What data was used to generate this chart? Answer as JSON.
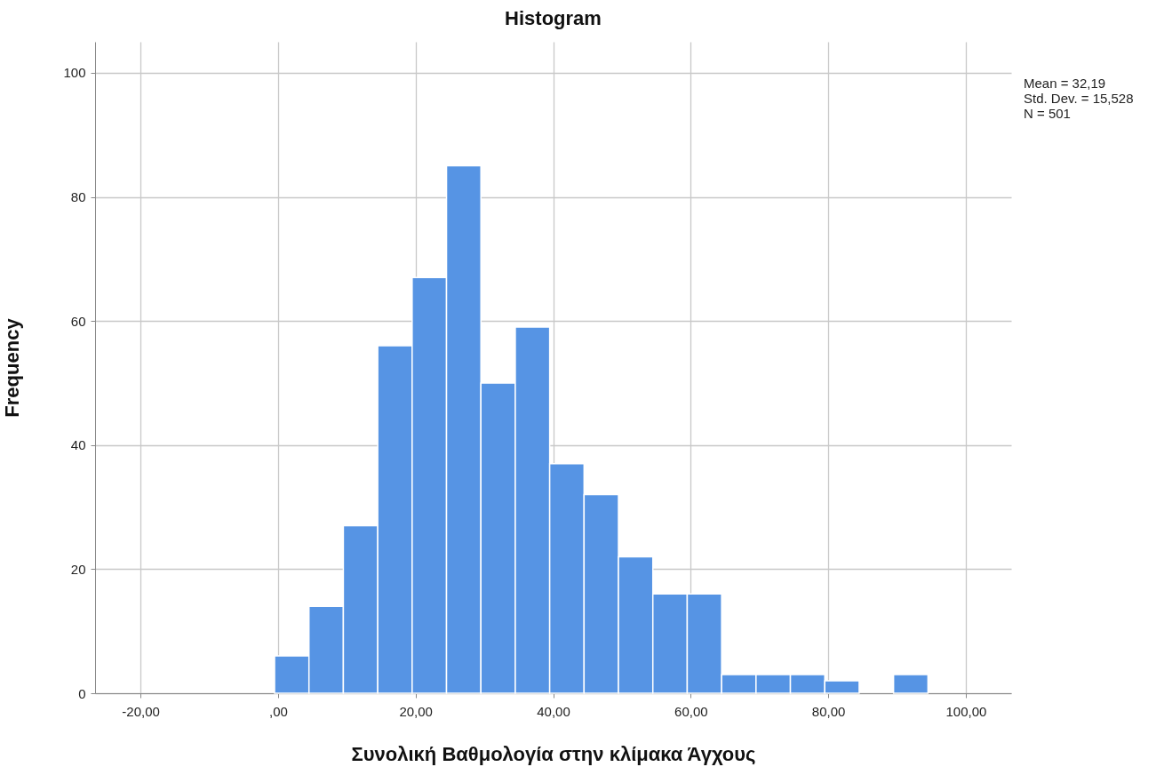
{
  "chart_data": {
    "type": "histogram",
    "title": "Histogram",
    "xlabel": "Συνολική Βαθμολογία στην κλίμακα Άγχους",
    "ylabel": "Frequency",
    "bins": [
      -0.5,
      4.5,
      9.5,
      14.5,
      19.5,
      24.5,
      29.5,
      34.5,
      39.5,
      44.5,
      49.5,
      54.5,
      59.5,
      64.5,
      69.5,
      74.5,
      79.5,
      84.5,
      89.5,
      94.5
    ],
    "values": [
      6,
      14,
      27,
      56,
      67,
      85,
      50,
      59,
      37,
      32,
      22,
      16,
      16,
      3,
      3,
      3,
      2,
      0,
      3
    ],
    "color": "#5694e4",
    "xlim": [
      -26.6,
      106.6
    ],
    "xticks": [
      {
        "value": -20,
        "label": "-20,00"
      },
      {
        "value": 0,
        "label": ",00"
      },
      {
        "value": 20,
        "label": "20,00"
      },
      {
        "value": 40,
        "label": "40,00"
      },
      {
        "value": 60,
        "label": "60,00"
      },
      {
        "value": 80,
        "label": "80,00"
      },
      {
        "value": 100,
        "label": "100,00"
      }
    ],
    "ylim": [
      0,
      105
    ],
    "yticks": [
      0,
      20,
      40,
      60,
      80,
      100
    ],
    "grid": true,
    "annotations": [
      "Mean = 32,19",
      "Std. Dev. = 15,528",
      "N = 501"
    ]
  }
}
